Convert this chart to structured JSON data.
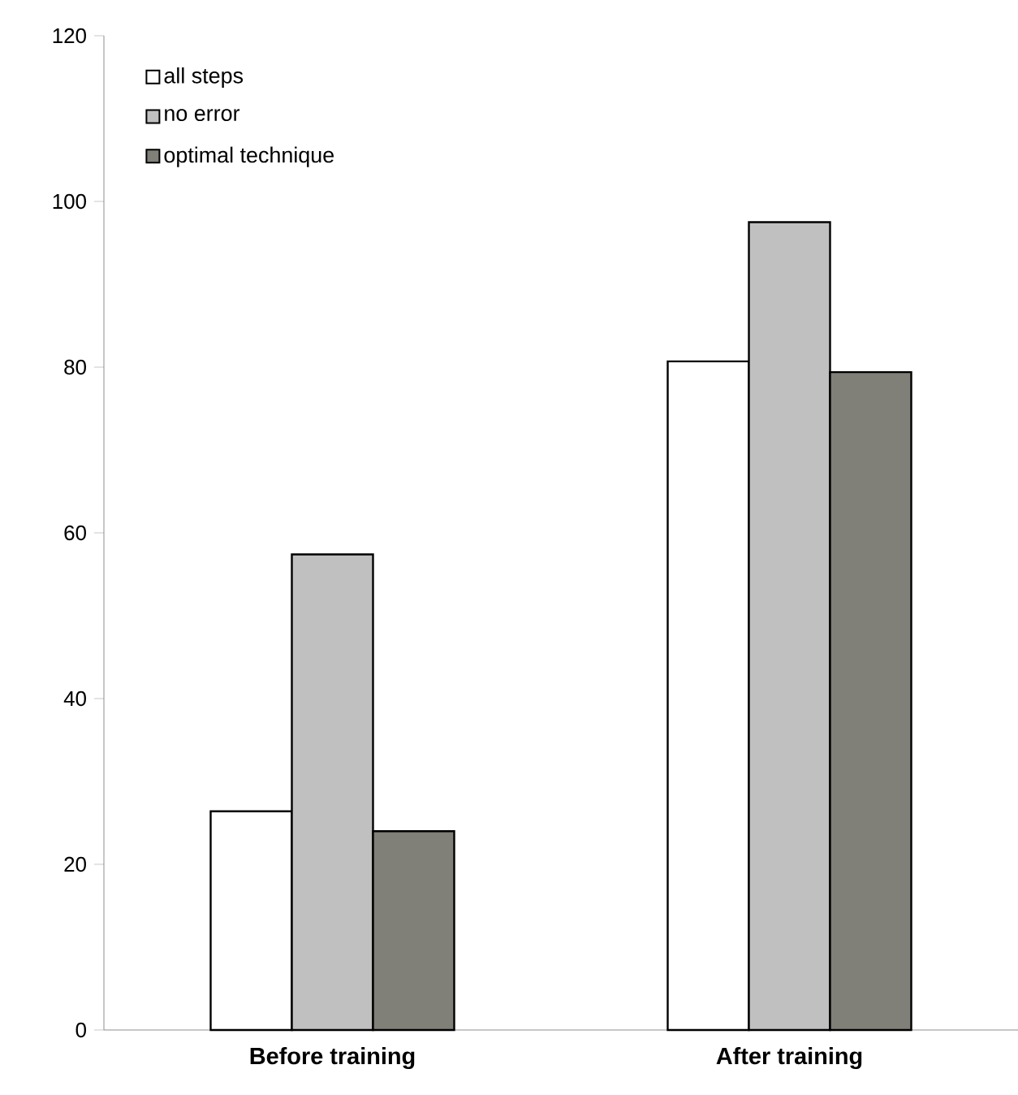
{
  "chart_data": {
    "type": "bar",
    "categories": [
      "Before training",
      "After training"
    ],
    "series": [
      {
        "name": "all steps",
        "color": "#ffffff",
        "values": [
          26.4,
          80.7
        ]
      },
      {
        "name": "no error",
        "color": "#c0c0c0",
        "values": [
          57.4,
          97.5
        ]
      },
      {
        "name": "optimal technique",
        "color": "#808078",
        "values": [
          24.0,
          79.4
        ]
      }
    ],
    "ylim": [
      0,
      120
    ],
    "yticks": [
      0,
      20,
      40,
      60,
      80,
      100,
      120
    ],
    "legend": "top left"
  }
}
